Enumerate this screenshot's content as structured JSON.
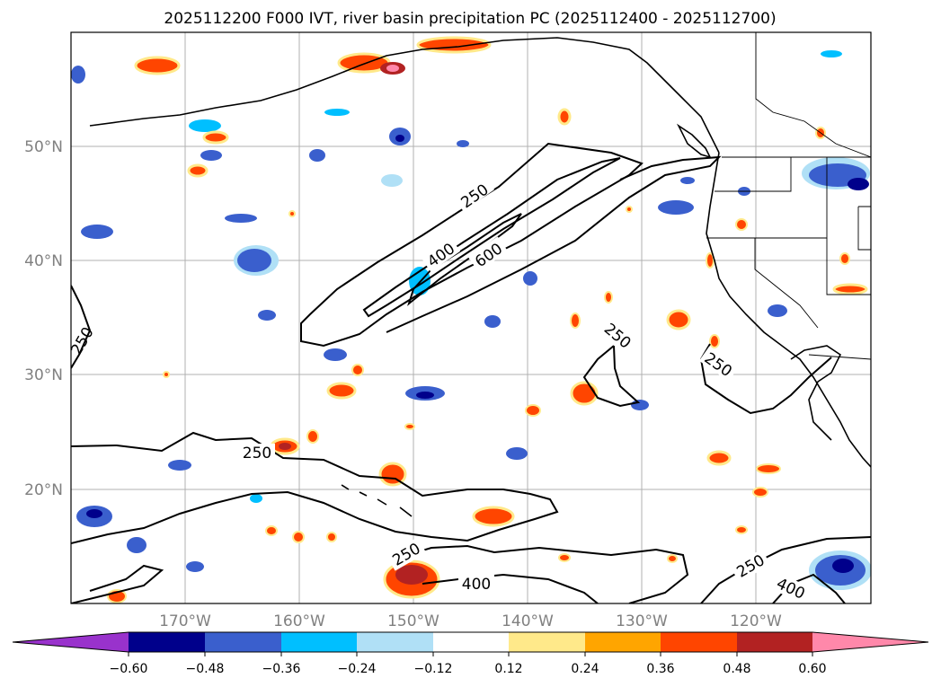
{
  "title": "2025112200 F000 IVT, river basin precipitation PC (2025112400 - 2025112700)",
  "axes": {
    "lat_labels": [
      "20°N",
      "30°N",
      "40°N",
      "50°N"
    ],
    "lon_labels": [
      "170°W",
      "160°W",
      "150°W",
      "140°W",
      "130°W",
      "120°W"
    ],
    "label_color": "#808080",
    "grid": true
  },
  "contour_labels": [
    "250",
    "250",
    "250",
    "250",
    "250",
    "250",
    "400",
    "400",
    "400",
    "600"
  ],
  "colorbar": {
    "ticks": [
      "−0.60",
      "−0.48",
      "−0.36",
      "−0.24",
      "−0.12",
      "0.12",
      "0.24",
      "0.36",
      "0.48",
      "0.60"
    ],
    "colors": [
      "#9932cc",
      "#00008b",
      "#3a5fcd",
      "#00bfff",
      "#b0e0f6",
      "#ffffff",
      "#ffe98a",
      "#ffa500",
      "#ff4500",
      "#b22222",
      "#ff88aa"
    ]
  }
}
